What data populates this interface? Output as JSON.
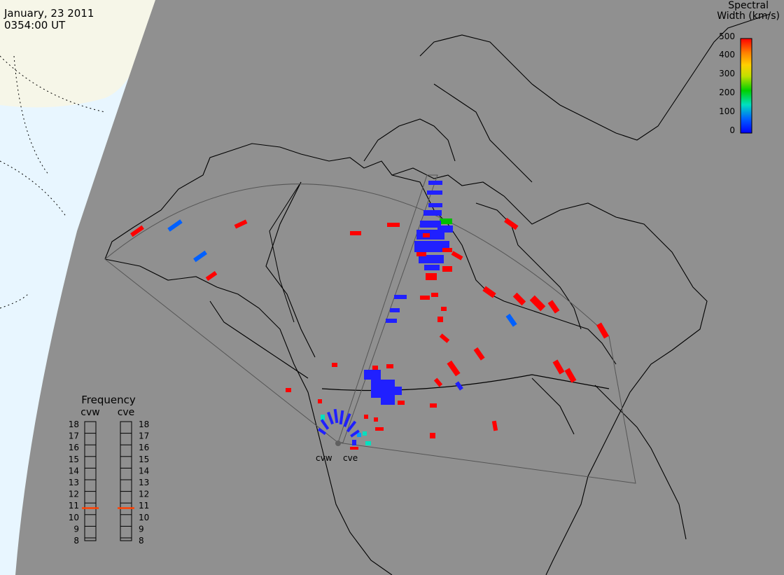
{
  "timestamp": {
    "date": "January, 23 2011",
    "time": "0354:00 UT"
  },
  "colorbar": {
    "title_line1": "Spectral",
    "title_line2": "Width (km/s)",
    "ticks": [
      "500",
      "400",
      "300",
      "200",
      "100",
      "0"
    ],
    "range": [
      0,
      500
    ],
    "colors": [
      "#0000ff",
      "#00a0ff",
      "#00e0c0",
      "#00d000",
      "#c0e000",
      "#ffd000",
      "#ff8000",
      "#ff0000"
    ]
  },
  "frequency_panel": {
    "title": "Frequency",
    "radars": [
      {
        "name": "cvw",
        "frequency_mhz": 10.7
      },
      {
        "name": "cve",
        "frequency_mhz": 10.7
      }
    ],
    "scale": [
      "18",
      "17",
      "16",
      "15",
      "14",
      "13",
      "12",
      "11",
      "10",
      "9",
      "8"
    ]
  },
  "radar_labels": [
    "cvw",
    "cve"
  ],
  "colors": {
    "background": "#ffffff",
    "globe": "#909090",
    "sunlit": "#e8f6ff",
    "terminator": "#f6f6e8",
    "low_width": "#0000ff",
    "high_width": "#ff0000",
    "freq_marker": "#ff4000"
  }
}
